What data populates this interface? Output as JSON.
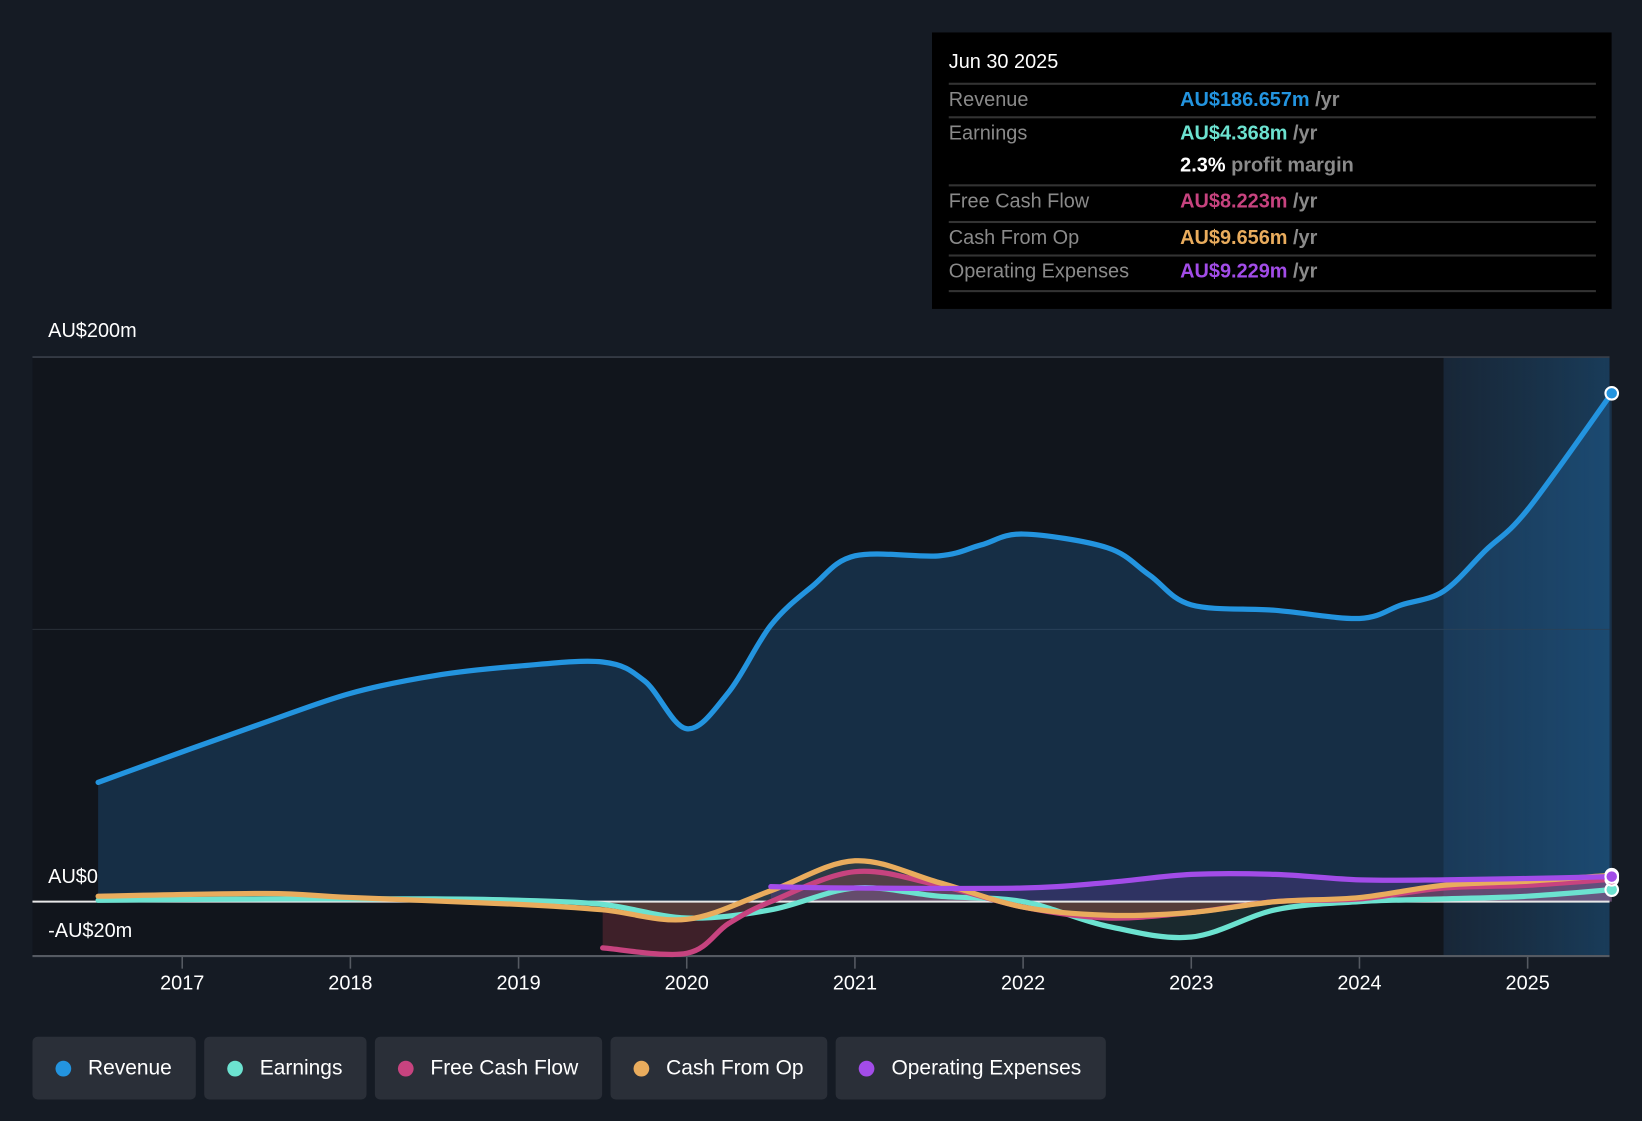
{
  "tooltip": {
    "date": "Jun 30 2025",
    "rows": [
      {
        "label": "Revenue",
        "value": "AU$186.657m",
        "unit": " /yr",
        "color": "#2394df"
      },
      {
        "label": "Earnings",
        "value": "AU$4.368m",
        "unit": " /yr",
        "color": "#6ce2d0"
      },
      {
        "label": "",
        "value": "2.3%",
        "unit": " profit margin",
        "color": "#ffffff"
      },
      {
        "label": "Free Cash Flow",
        "value": "AU$8.223m",
        "unit": " /yr",
        "color": "#c7437f"
      },
      {
        "label": "Cash From Op",
        "value": "AU$9.656m",
        "unit": " /yr",
        "color": "#e9ac5d"
      },
      {
        "label": "Operating Expenses",
        "value": "AU$9.229m",
        "unit": " /yr",
        "color": "#a24ce8"
      }
    ]
  },
  "legend": [
    {
      "label": "Revenue",
      "color": "#2394df"
    },
    {
      "label": "Earnings",
      "color": "#6ce2d0"
    },
    {
      "label": "Free Cash Flow",
      "color": "#c7437f"
    },
    {
      "label": "Cash From Op",
      "color": "#e9ac5d"
    },
    {
      "label": "Operating Expenses",
      "color": "#a24ce8"
    }
  ],
  "chart_data": {
    "type": "line",
    "ylim": [
      -20,
      200
    ],
    "xlim": [
      2016.5,
      2025.5
    ],
    "forecast_start": 2024.5,
    "y_ticks": [
      {
        "value": 200,
        "label": "AU$200m"
      },
      {
        "value": 0,
        "label": "AU$0"
      },
      {
        "value": -20,
        "label": "-AU$20m"
      }
    ],
    "x_ticks": [
      "2017",
      "2018",
      "2019",
      "2020",
      "2021",
      "2022",
      "2023",
      "2024",
      "2025"
    ],
    "series": [
      {
        "name": "Revenue",
        "color": "#2394df",
        "points": [
          [
            2016.5,
            43.8
          ],
          [
            2017,
            55
          ],
          [
            2017.5,
            66
          ],
          [
            2018,
            76.5
          ],
          [
            2018.5,
            83
          ],
          [
            2019,
            86.5
          ],
          [
            2019.5,
            88
          ],
          [
            2019.75,
            81
          ],
          [
            2020,
            63.5
          ],
          [
            2020.25,
            77
          ],
          [
            2020.5,
            101.5
          ],
          [
            2020.75,
            116
          ],
          [
            2021,
            127
          ],
          [
            2021.5,
            127
          ],
          [
            2021.75,
            131
          ],
          [
            2022,
            135
          ],
          [
            2022.5,
            130
          ],
          [
            2022.75,
            120
          ],
          [
            2023,
            109
          ],
          [
            2023.5,
            107
          ],
          [
            2024,
            104
          ],
          [
            2024.25,
            109
          ],
          [
            2024.5,
            114
          ],
          [
            2024.75,
            129
          ],
          [
            2025,
            144
          ],
          [
            2025.5,
            186.7
          ]
        ]
      },
      {
        "name": "Earnings",
        "color": "#6ce2d0",
        "points": [
          [
            2016.5,
            0.5
          ],
          [
            2017.5,
            1
          ],
          [
            2018.5,
            1
          ],
          [
            2019,
            0.5
          ],
          [
            2019.5,
            -1
          ],
          [
            2020,
            -6
          ],
          [
            2020.5,
            -3
          ],
          [
            2021,
            5
          ],
          [
            2021.5,
            2
          ],
          [
            2022,
            0
          ],
          [
            2022.5,
            -9
          ],
          [
            2023,
            -13
          ],
          [
            2023.5,
            -3
          ],
          [
            2024,
            0
          ],
          [
            2024.5,
            1
          ],
          [
            2025,
            2
          ],
          [
            2025.5,
            4.4
          ]
        ]
      },
      {
        "name": "Free Cash Flow",
        "color": "#c7437f",
        "points": [
          [
            2019.5,
            -17
          ],
          [
            2020,
            -19
          ],
          [
            2020.25,
            -8
          ],
          [
            2020.5,
            0
          ],
          [
            2021,
            11
          ],
          [
            2021.5,
            6
          ],
          [
            2022,
            -2
          ],
          [
            2022.5,
            -6
          ],
          [
            2023,
            -4
          ],
          [
            2023.5,
            0
          ],
          [
            2024,
            1
          ],
          [
            2024.5,
            5
          ],
          [
            2025,
            6
          ],
          [
            2025.5,
            8.2
          ]
        ]
      },
      {
        "name": "Cash From Op",
        "color": "#e9ac5d",
        "points": [
          [
            2016.5,
            2
          ],
          [
            2017.5,
            3
          ],
          [
            2018,
            1.5
          ],
          [
            2019,
            -1
          ],
          [
            2019.5,
            -3
          ],
          [
            2020,
            -6.5
          ],
          [
            2020.5,
            4
          ],
          [
            2021,
            15
          ],
          [
            2021.5,
            7
          ],
          [
            2022,
            -2
          ],
          [
            2022.5,
            -5
          ],
          [
            2023,
            -4
          ],
          [
            2023.5,
            0
          ],
          [
            2024,
            1.5
          ],
          [
            2024.5,
            6
          ],
          [
            2025,
            7.5
          ],
          [
            2025.5,
            9.7
          ]
        ]
      },
      {
        "name": "Operating Expenses",
        "color": "#a24ce8",
        "points": [
          [
            2020.5,
            5.5
          ],
          [
            2021,
            5
          ],
          [
            2022,
            5
          ],
          [
            2022.5,
            7
          ],
          [
            2023,
            10
          ],
          [
            2023.5,
            10
          ],
          [
            2024,
            8
          ],
          [
            2024.5,
            8
          ],
          [
            2025,
            8.5
          ],
          [
            2025.5,
            9.2
          ]
        ]
      }
    ]
  }
}
